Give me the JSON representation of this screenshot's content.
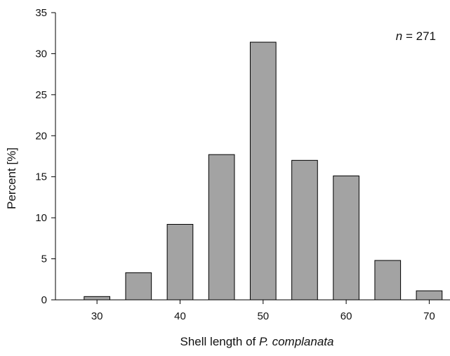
{
  "chart_data": {
    "type": "bar",
    "xlabel_prefix": "Shell length of ",
    "xlabel_italic": "P. complanata",
    "ylabel": "Percent [%]",
    "annotation_italic": "n",
    "annotation_rest": " = 271",
    "x": [
      30,
      35,
      40,
      45,
      50,
      55,
      60,
      65,
      70
    ],
    "values": [
      0.4,
      3.3,
      9.2,
      17.7,
      31.4,
      17.0,
      15.1,
      4.8,
      1.1
    ],
    "xlim": [
      25,
      72.5
    ],
    "ylim": [
      0,
      35
    ],
    "xticks": [
      30,
      40,
      50,
      60,
      70
    ],
    "yticks": [
      0,
      5,
      10,
      15,
      20,
      25,
      30,
      35
    ],
    "grid": false,
    "legend": "none",
    "colors": {
      "bar_fill": "#a3a3a3",
      "bar_stroke": "#000000"
    }
  }
}
